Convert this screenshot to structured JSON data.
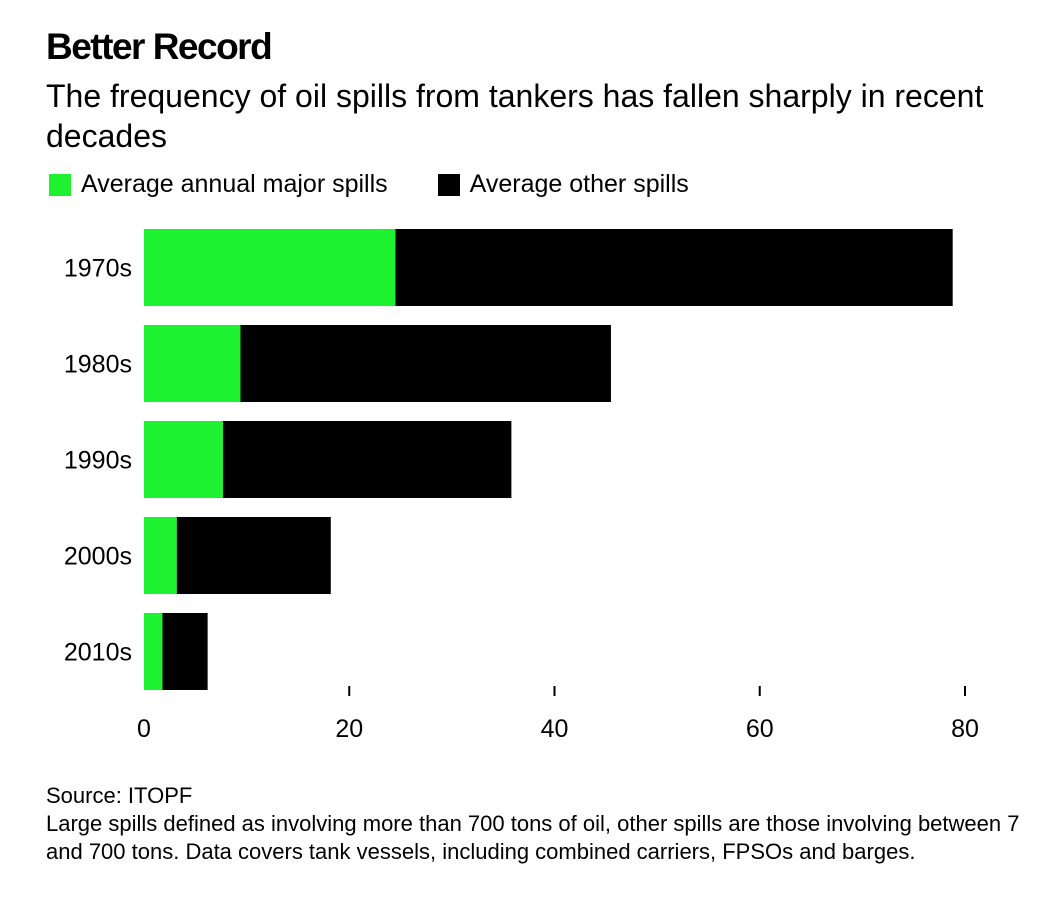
{
  "header": {
    "title": "Better Record",
    "subtitle": "The frequency of oil spills from tankers has fallen sharply in recent decades"
  },
  "footer": {
    "source": "Source: ITOPF",
    "note": "Large spills defined as involving more than 700 tons of oil, other spills are those involving between 7 and 700 tons. Data covers tank vessels, including combined carriers, FPSOs and barges."
  },
  "chart_data": {
    "type": "bar",
    "orientation": "horizontal",
    "stacked": true,
    "title": "Better Record",
    "subtitle": "The frequency of oil spills from tankers has fallen sharply in recent decades",
    "categories": [
      "1970s",
      "1980s",
      "1990s",
      "2000s",
      "2010s"
    ],
    "series": [
      {
        "name": "Average annual major spills",
        "color": "#1ef230",
        "values": [
          24.5,
          9.4,
          7.7,
          3.2,
          1.8
        ]
      },
      {
        "name": "Average other spills",
        "color": "#000000",
        "values": [
          54.3,
          36.1,
          28.1,
          15.0,
          4.4
        ]
      }
    ],
    "xlim": [
      0,
      80
    ],
    "xticks": [
      0,
      20,
      40,
      60,
      80
    ],
    "legend_position": "top-left",
    "grid": false
  }
}
